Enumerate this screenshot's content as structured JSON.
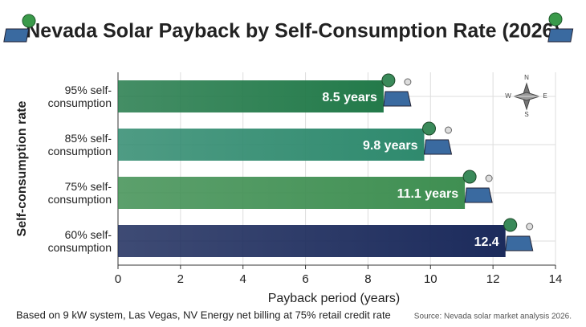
{
  "chart_data": {
    "type": "barh",
    "title": "Nevada Solar Payback by Self-Consumption Rate (2026)",
    "categories": [
      "95% self-consumption",
      "85% self-consumption",
      "75% self-consumption",
      "60% self-consumption"
    ],
    "values": [
      8.5,
      9.8,
      11.1,
      12.4
    ],
    "value_labels": [
      "8.5 years",
      "9.8 years",
      "11.1 years",
      "12.4"
    ],
    "colors": [
      "#237a4a",
      "#2f8a6e",
      "#3f8f52",
      "#1c2b5c"
    ],
    "xlim": [
      0,
      14
    ],
    "xticks": [
      0,
      2,
      4,
      6,
      8,
      10,
      12,
      14
    ],
    "grid": true,
    "xlabel": "Payback period (years)",
    "ylabel": "Self-consumption rate",
    "compass": [
      "N",
      "E",
      "S",
      "W"
    ],
    "footnote": "Based on 9 kW system, Las Vegas, NV Energy net billing at 75% retail credit rate",
    "source": "Source: Nevada solar market analysis 2026."
  }
}
